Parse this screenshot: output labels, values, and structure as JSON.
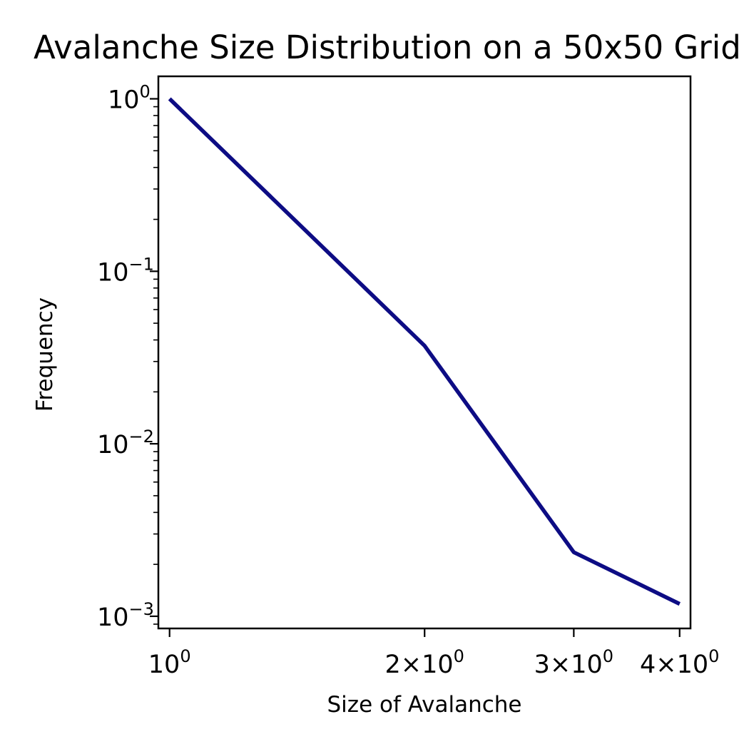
{
  "chart_data": {
    "type": "line",
    "title": "Avalanche Size Distribution on a 50x50 Grid",
    "xlabel": "Size of Avalanche",
    "ylabel": "Frequency",
    "x_scale": "log",
    "y_scale": "log",
    "xlim": [
      0.97,
      4.12
    ],
    "ylim": [
      0.00085,
      1.35
    ],
    "grid": false,
    "series": [
      {
        "color": "#0d0c84",
        "x": [
          1,
          2,
          3,
          4
        ],
        "y": [
          1.0,
          0.037,
          0.00235,
          0.00118
        ]
      }
    ],
    "x_ticks": [
      {
        "value": 1,
        "mant": "",
        "exp": "0"
      },
      {
        "value": 2,
        "mant": "2×",
        "exp": "0"
      },
      {
        "value": 3,
        "mant": "3×",
        "exp": "0"
      },
      {
        "value": 4,
        "mant": "4×",
        "exp": "0"
      }
    ],
    "y_ticks": [
      {
        "value": 1,
        "exp": "0"
      },
      {
        "value": 0.1,
        "exp": "−1"
      },
      {
        "value": 0.01,
        "exp": "−2"
      },
      {
        "value": 0.001,
        "exp": "−3"
      }
    ]
  }
}
